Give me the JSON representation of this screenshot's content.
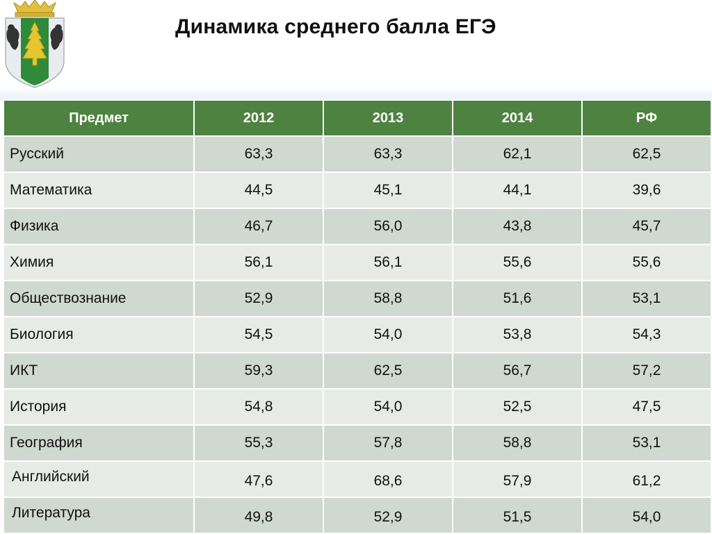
{
  "slide": {
    "title": "Динамика среднего балла ЕГЭ"
  },
  "emblem": {
    "icon": "coat-of-arms-icon",
    "colors": {
      "shield": "#e8ecef",
      "pale": "#2f8a3a",
      "tree": "#e5c62f",
      "crown": "#e3c03a",
      "bear": "#333333"
    }
  },
  "table": {
    "headers": [
      "Предмет",
      "2012",
      "2013",
      "2014",
      "РФ"
    ],
    "rows": [
      {
        "subject": "Русский",
        "values": [
          "63,3",
          "63,3",
          "62,1",
          "62,5"
        ]
      },
      {
        "subject": "Математика",
        "values": [
          "44,5",
          "45,1",
          "44,1",
          "39,6"
        ]
      },
      {
        "subject": "Физика",
        "values": [
          "46,7",
          "56,0",
          "43,8",
          "45,7"
        ]
      },
      {
        "subject": "Химия",
        "values": [
          "56,1",
          "56,1",
          "55,6",
          "55,6"
        ]
      },
      {
        "subject": "Обществознание",
        "values": [
          "52,9",
          "58,8",
          "51,6",
          "53,1"
        ]
      },
      {
        "subject": "Биология",
        "values": [
          "54,5",
          "54,0",
          "53,8",
          "54,3"
        ]
      },
      {
        "subject": "ИКТ",
        "values": [
          "59,3",
          "62,5",
          "56,7",
          "57,2"
        ]
      },
      {
        "subject": "История",
        "values": [
          "54,8",
          "54,0",
          "52,5",
          "47,5"
        ]
      },
      {
        "subject": "География",
        "values": [
          "55,3",
          "57,8",
          "58,8",
          "53,1"
        ]
      },
      {
        "subject": "Английский",
        "values": [
          "47,6",
          "68,6",
          "57,9",
          "61,2"
        ]
      },
      {
        "subject": "Литература",
        "values": [
          "49,8",
          "52,9",
          "51,5",
          "54,0"
        ]
      }
    ],
    "colors": {
      "header": "#4e8240",
      "row_odd": "#cfd9cf",
      "row_even": "#e6ebe6"
    }
  }
}
